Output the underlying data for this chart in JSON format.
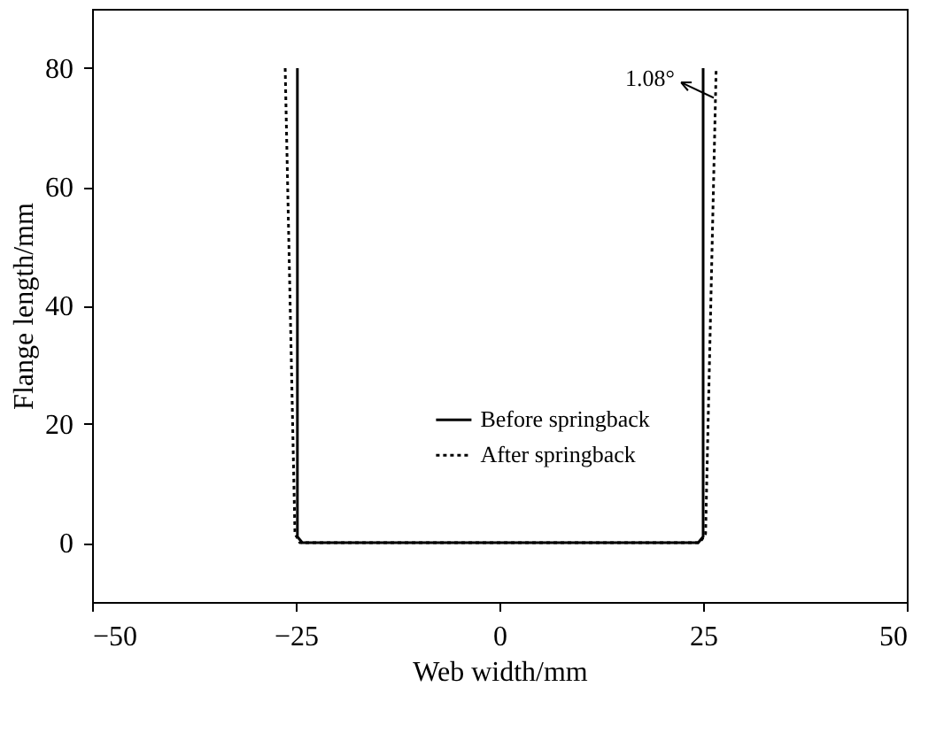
{
  "chart_data": {
    "type": "line",
    "xlabel": "Web width/mm",
    "ylabel": "Flange length/mm",
    "series": [
      {
        "name": "Before springback",
        "color": "#000000",
        "line_style": "solid",
        "x": [
          -24.8,
          -24.8,
          -24.2,
          24.4,
          25.0,
          25.0
        ],
        "values": [
          80,
          1,
          0,
          0,
          1,
          80
        ]
      },
      {
        "name": "After springback",
        "color": "#000000",
        "line_style": "dotted",
        "x": [
          -26.3,
          -25.1,
          -24.5,
          24.6,
          25.3,
          26.6
        ],
        "values": [
          80,
          1.5,
          0,
          0,
          1.5,
          80
        ]
      }
    ],
    "xlim": [
      -50,
      50
    ],
    "xticks": [
      -50,
      -25,
      0,
      25,
      50
    ],
    "ylim": [
      -10,
      90
    ],
    "yticks": [
      0,
      20,
      40,
      60,
      80
    ],
    "grid": false,
    "legend": "bottom",
    "marker": "none",
    "annotations": [
      {
        "text": "1.08°",
        "x": 26.3,
        "y": 75
      }
    ]
  }
}
